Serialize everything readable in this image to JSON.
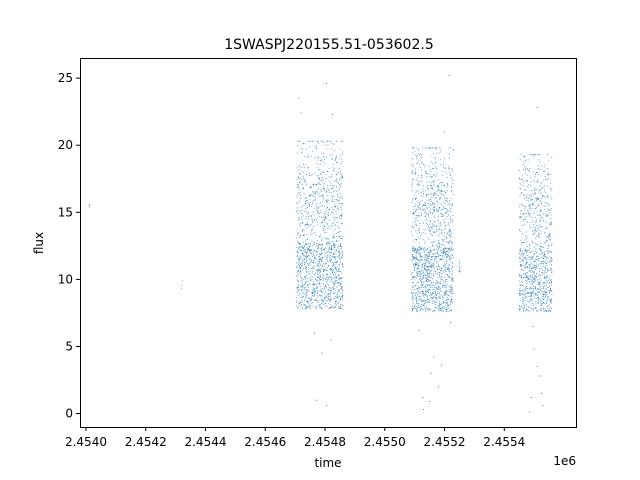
{
  "chart_data": {
    "type": "scatter",
    "title": "1SWASPJ220155.51-053602.5",
    "xlabel": "time",
    "ylabel": "flux",
    "x_offset_label": "1e6",
    "xlim": [
      2453880,
      2455540
    ],
    "ylim": [
      -1.0,
      26.5
    ],
    "x_ticks": [
      2453900,
      2454100,
      2454300,
      2454500,
      2454700,
      2454900,
      2455100,
      2455300
    ],
    "x_tick_labels": [
      "2.4540",
      "2.4542",
      "2.4544",
      "2.4546",
      "2.4548",
      "2.4550",
      "2.4552",
      "2.4554"
    ],
    "y_ticks": [
      0,
      5,
      10,
      15,
      20,
      25
    ],
    "y_tick_labels": [
      "0",
      "5",
      "10",
      "15",
      "20",
      "25"
    ],
    "grid": false,
    "legend": "none",
    "marker_color": "#1f77b4",
    "clusters": [
      {
        "x_range": [
          2453910,
          2453912
        ],
        "y_range": [
          14.9,
          15.7
        ],
        "n": 4
      },
      {
        "x_range": [
          2454220,
          2454222
        ],
        "y_range": [
          9.2,
          10.2
        ],
        "n": 3
      },
      {
        "x_range": [
          2454605,
          2454760
        ],
        "y_range": [
          7.8,
          20.3
        ],
        "n": 1500
      },
      {
        "x_range": [
          2454990,
          2455130
        ],
        "y_range": [
          7.6,
          19.8
        ],
        "n": 1500
      },
      {
        "x_range": [
          2455148,
          2455153
        ],
        "y_range": [
          10.5,
          11.6
        ],
        "n": 10
      },
      {
        "x_range": [
          2455350,
          2455460
        ],
        "y_range": [
          7.6,
          19.3
        ],
        "n": 1000
      }
    ],
    "outliers": [
      {
        "x": 2454612,
        "y": 23.5
      },
      {
        "x": 2454620,
        "y": 22.4
      },
      {
        "x": 2454705,
        "y": 24.6
      },
      {
        "x": 2454725,
        "y": 22.3
      },
      {
        "x": 2454665,
        "y": 6.0
      },
      {
        "x": 2454672,
        "y": 1.0
      },
      {
        "x": 2454690,
        "y": 4.5
      },
      {
        "x": 2454705,
        "y": 0.6
      },
      {
        "x": 2454720,
        "y": 5.5
      },
      {
        "x": 2455015,
        "y": 6.2
      },
      {
        "x": 2455028,
        "y": 1.2
      },
      {
        "x": 2455030,
        "y": 0.3
      },
      {
        "x": 2455055,
        "y": 3.0
      },
      {
        "x": 2455065,
        "y": 4.2
      },
      {
        "x": 2455080,
        "y": 2.0
      },
      {
        "x": 2455090,
        "y": 3.6
      },
      {
        "x": 2455115,
        "y": 25.2
      },
      {
        "x": 2455100,
        "y": 21.0
      },
      {
        "x": 2455050,
        "y": 0.9
      },
      {
        "x": 2455120,
        "y": 6.8
      },
      {
        "x": 2455385,
        "y": 0.1
      },
      {
        "x": 2455390,
        "y": 1.2
      },
      {
        "x": 2455400,
        "y": 4.8
      },
      {
        "x": 2455410,
        "y": 3.5
      },
      {
        "x": 2455418,
        "y": 2.8
      },
      {
        "x": 2455425,
        "y": 1.5
      },
      {
        "x": 2455430,
        "y": 0.6
      },
      {
        "x": 2455410,
        "y": 22.8
      },
      {
        "x": 2455395,
        "y": 6.5
      }
    ]
  }
}
